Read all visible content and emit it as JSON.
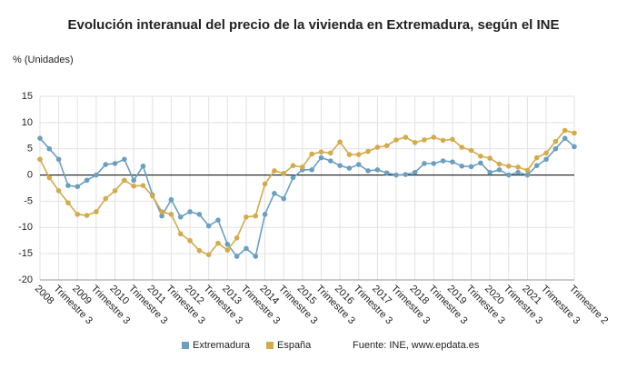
{
  "chart_data": {
    "type": "line",
    "title": "Evolución interanual del precio de la vivienda en Extremadura, según el INE",
    "y_label": "% (Unidades)",
    "source": "Fuente: INE, www.epdata.es",
    "categories": [
      "2008",
      null,
      "Trimestre 3",
      null,
      "2009",
      null,
      "Trimestre 3",
      null,
      "2010",
      null,
      "Trimestre 3",
      null,
      "2011",
      null,
      "Trimestre 3",
      null,
      "2012",
      null,
      "Trimestre 3",
      null,
      "2013",
      null,
      "Trimestre 3",
      null,
      "2014",
      null,
      "Trimestre 3",
      null,
      "2015",
      null,
      "Trimestre 3",
      null,
      "2016",
      null,
      "Trimestre 3",
      null,
      "2017",
      null,
      "Trimestre 3",
      null,
      "2018",
      null,
      "Trimestre 3",
      null,
      "2019",
      null,
      "Trimestre 3",
      null,
      "2020",
      null,
      "Trimestre 3",
      null,
      "2021",
      null,
      "Trimestre 3",
      null,
      null,
      "Trimestre 2"
    ],
    "series": [
      {
        "name": "Extremadura",
        "color": "#6a9fc0",
        "values": [
          7,
          5,
          3,
          -2,
          -2.2,
          -1,
          0,
          2,
          2.2,
          3,
          -1,
          1.7,
          -3.8,
          -7.8,
          -4.7,
          -8,
          -7,
          -7.5,
          -9.7,
          -8.6,
          -13.2,
          -15.5,
          -14,
          -15.5,
          -7.5,
          -3.5,
          -4.5,
          -0.5,
          1,
          1,
          3.3,
          2.7,
          1.8,
          1.3,
          2,
          0.8,
          1,
          0.4,
          0,
          0.1,
          0.5,
          2.2,
          2.2,
          2.7,
          2.5,
          1.7,
          1.6,
          2.3,
          0.5,
          1,
          0,
          0.5,
          0,
          1.8,
          3,
          5,
          7,
          5.4
        ]
      },
      {
        "name": "España",
        "color": "#d4aa4a",
        "values": [
          3,
          -0.5,
          -3,
          -5.3,
          -7.5,
          -7.7,
          -7,
          -4.5,
          -3,
          -1,
          -2.1,
          -2,
          -4,
          -7,
          -7.5,
          -11.2,
          -12.5,
          -14.4,
          -15.2,
          -13,
          -14.3,
          -12,
          -8,
          -7.8,
          -1.7,
          0.8,
          0.3,
          1.8,
          1.5,
          4,
          4.4,
          4.2,
          6.3,
          3.9,
          3.9,
          4.5,
          5.3,
          5.6,
          6.7,
          7.2,
          6.2,
          6.7,
          7.2,
          6.6,
          6.8,
          5.3,
          4.7,
          3.6,
          3.2,
          2.1,
          1.7,
          1.5,
          0.9,
          3.3,
          4.2,
          6.4,
          8.5,
          8
        ]
      }
    ],
    "ylim": [
      -20,
      15
    ],
    "yticks": [
      -20,
      -15,
      -10,
      -5,
      0,
      5,
      10,
      15
    ],
    "grid": true
  }
}
